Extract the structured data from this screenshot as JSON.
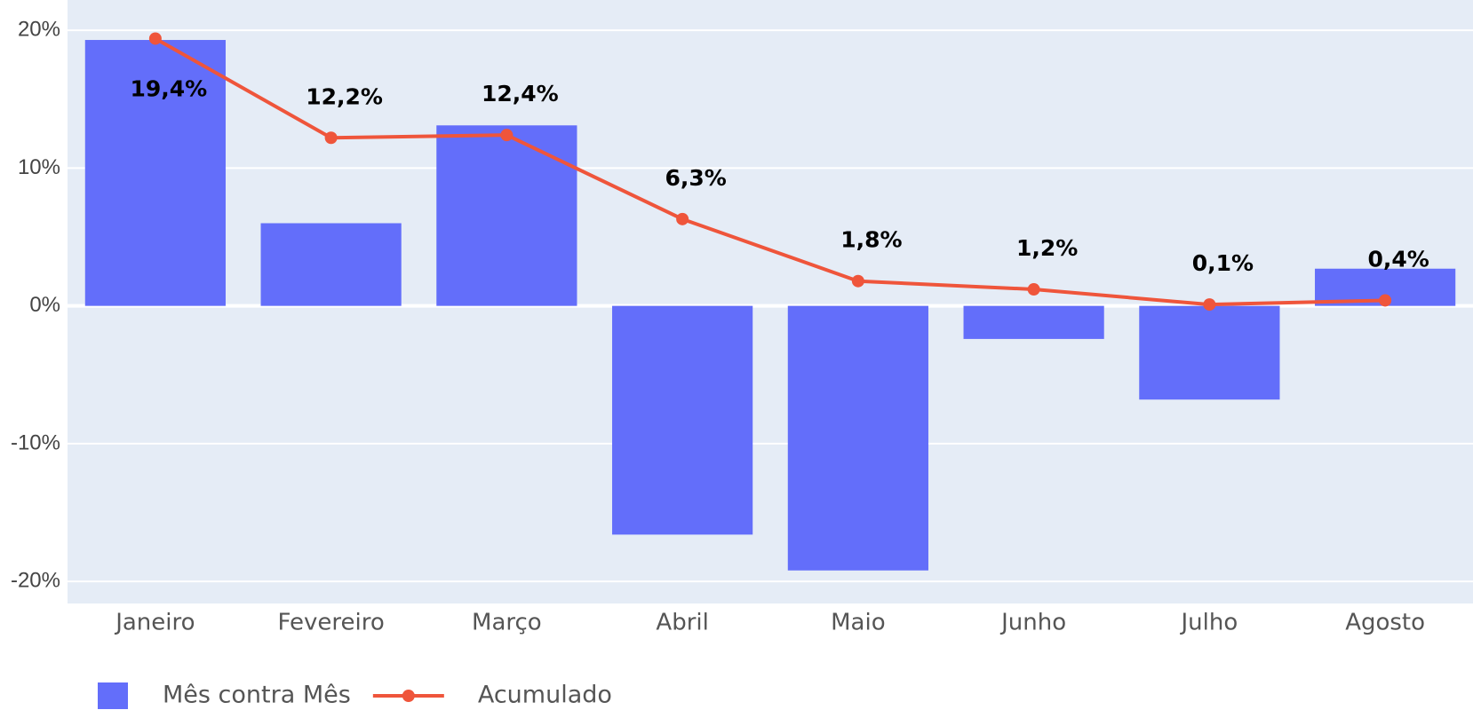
{
  "chart_data": {
    "type": "bar-line",
    "categories": [
      "Janeiro",
      "Fevereiro",
      "Março",
      "Abril",
      "Maio",
      "Junho",
      "Julho",
      "Agosto"
    ],
    "series": [
      {
        "name": "Mês contra Mês",
        "type": "bar",
        "color": "#636efa",
        "values": [
          19.3,
          6.0,
          13.1,
          -16.6,
          -19.2,
          -2.4,
          -6.8,
          2.7
        ]
      },
      {
        "name": "Acumulado",
        "type": "line",
        "color": "#ef553b",
        "values": [
          19.4,
          12.2,
          12.4,
          6.3,
          1.8,
          1.2,
          0.1,
          0.4
        ],
        "value_labels": [
          "19,4%",
          "12,2%",
          "12,4%",
          "6,3%",
          "1,8%",
          "1,2%",
          "0,1%",
          "0,4%"
        ]
      }
    ],
    "ylim": [
      -21.6,
      22.2
    ],
    "yticks": [
      {
        "value": -20,
        "label": "-20%"
      },
      {
        "value": -10,
        "label": "-10%"
      },
      {
        "value": 0,
        "label": "0%"
      },
      {
        "value": 10,
        "label": "10%"
      },
      {
        "value": 20,
        "label": "20%"
      }
    ],
    "grid": true,
    "legend": "bottom-left",
    "background": "#e5ecf6"
  }
}
